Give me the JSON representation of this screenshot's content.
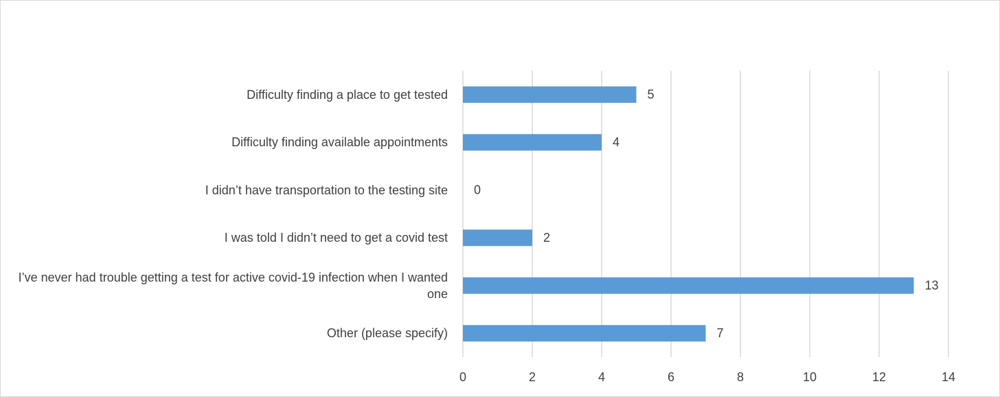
{
  "chart_data": {
    "type": "bar",
    "orientation": "horizontal",
    "categories": [
      "Difficulty finding a place to get tested",
      "Difficulty finding available appointments",
      "I didn’t have transportation to the testing site",
      "I was told I didn’t need to get a covid test",
      "I’ve never had trouble getting a test for active covid-19 infection when I wanted one",
      "Other (please specify)"
    ],
    "values": [
      5,
      4,
      0,
      2,
      13,
      7
    ],
    "color": "#5b9bd5",
    "xlim": [
      0,
      14
    ],
    "xticks": [
      0,
      2,
      4,
      6,
      8,
      10,
      12,
      14
    ],
    "grid": true
  }
}
